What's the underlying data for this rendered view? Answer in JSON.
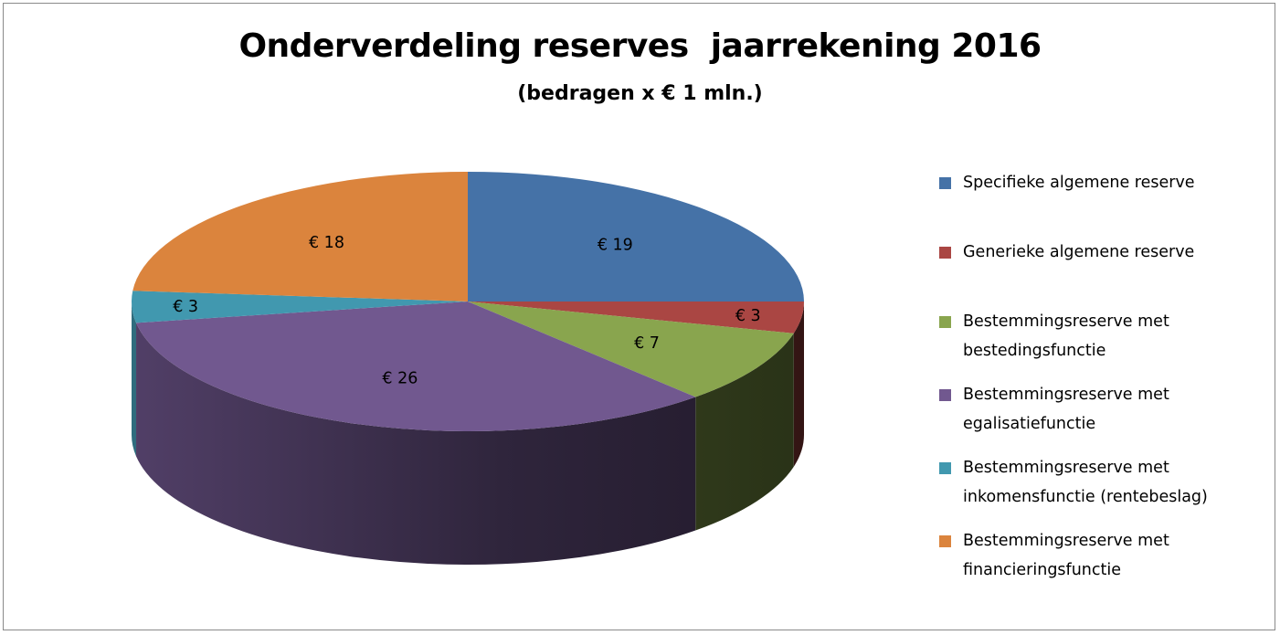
{
  "title": "Onderverdeling reserves  jaarrekening 2016",
  "subtitle": "(bedragen x € 1 mln.)",
  "chart_data": {
    "type": "pie",
    "title": "Onderverdeling reserves  jaarrekening 2016",
    "subtitle": "(bedragen x € 1 mln.)",
    "style": "3D pie",
    "legend_position": "right",
    "slices": [
      {
        "name": "Specifieke algemene reserve",
        "value": 19,
        "label": "€ 19",
        "color": "#4572a7"
      },
      {
        "name": "Generieke algemene reserve",
        "value": 3,
        "label": "€ 3",
        "color": "#aa4643"
      },
      {
        "name": "Bestemmingsreserve met bestedingsfunctie",
        "value": 7,
        "label": "€ 7",
        "color": "#89a54e"
      },
      {
        "name": "Bestemmingsreserve met egalisatiefunctie",
        "value": 26,
        "label": "€ 26",
        "color": "#71588f"
      },
      {
        "name": "Bestemmingsreserve met inkomensfunctie (rentebeslag)",
        "value": 3,
        "label": "€ 3",
        "color": "#4198af"
      },
      {
        "name": "Bestemmingsreserve met financieringsfunctie",
        "value": 18,
        "label": "€ 18",
        "color": "#db843d"
      }
    ]
  },
  "legend": [
    {
      "lines": [
        "Specifieke algemene reserve"
      ]
    },
    {
      "lines": [
        "Generieke algemene reserve"
      ]
    },
    {
      "lines": [
        "Bestemmingsreserve met",
        "bestedingsfunctie"
      ]
    },
    {
      "lines": [
        "Bestemmingsreserve met",
        "egalisatiefunctie"
      ]
    },
    {
      "lines": [
        "Bestemmingsreserve met",
        "inkomensfunctie (rentebeslag)"
      ]
    },
    {
      "lines": [
        "Bestemmingsreserve met",
        "financieringsfunctie"
      ]
    }
  ]
}
